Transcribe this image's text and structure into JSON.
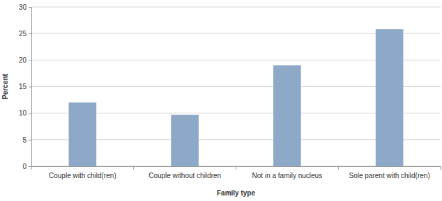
{
  "chart_data": {
    "type": "bar",
    "x_label": "Family type",
    "y_label": "Percent",
    "categories": [
      "Couple with child(ren)",
      "Couple without children",
      "Not in a family nucleus",
      "Sole parent with child(ren)"
    ],
    "values": [
      12.0,
      9.7,
      19.0,
      25.8
    ],
    "color": "#8ea8c8",
    "ylim": [
      0,
      30
    ],
    "yticks": [
      0,
      5,
      10,
      15,
      20,
      25,
      30
    ],
    "grid": true
  }
}
